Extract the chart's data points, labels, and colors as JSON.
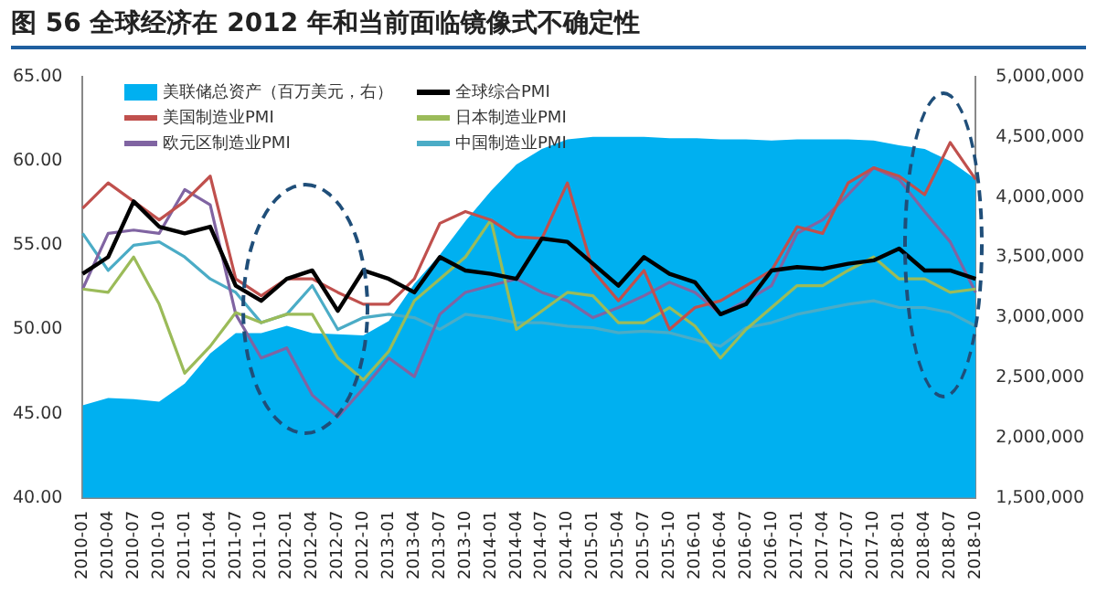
{
  "chart_data": {
    "type": "line",
    "title": "图 56 全球经济在 2012 年和当前面临镜像式不确定性",
    "categories": [
      "2010-01",
      "2010-04",
      "2010-07",
      "2010-10",
      "2011-01",
      "2011-04",
      "2011-07",
      "2011-10",
      "2012-01",
      "2012-04",
      "2012-07",
      "2012-10",
      "2013-01",
      "2013-04",
      "2013-07",
      "2013-10",
      "2014-01",
      "2014-04",
      "2014-07",
      "2014-10",
      "2015-01",
      "2015-04",
      "2015-07",
      "2015-10",
      "2016-01",
      "2016-04",
      "2016-07",
      "2016-10",
      "2017-01",
      "2017-04",
      "2017-07",
      "2017-10",
      "2018-01",
      "2018-04",
      "2018-07",
      "2018-10"
    ],
    "series": [
      {
        "name": "美联储总资产（百万美元，右）",
        "type": "area",
        "axis": "y2",
        "color": "#00b0f0",
        "values": [
          2270000,
          2330000,
          2320000,
          2300000,
          2450000,
          2700000,
          2870000,
          2870000,
          2930000,
          2870000,
          2860000,
          2850000,
          2970000,
          3280000,
          3520000,
          3800000,
          4050000,
          4270000,
          4400000,
          4480000,
          4500000,
          4500000,
          4500000,
          4490000,
          4490000,
          4480000,
          4480000,
          4470000,
          4480000,
          4480000,
          4480000,
          4470000,
          4430000,
          4400000,
          4300000,
          4150000
        ]
      },
      {
        "name": "全球综合PMI",
        "color": "#000000",
        "values": [
          53.3,
          54.3,
          57.6,
          56.1,
          55.7,
          56.1,
          52.6,
          51.7,
          53.0,
          53.5,
          51.1,
          53.5,
          53.0,
          52.2,
          54.3,
          53.5,
          53.3,
          53.0,
          55.4,
          55.2,
          53.9,
          52.6,
          54.3,
          53.3,
          52.8,
          50.9,
          51.5,
          53.5,
          53.7,
          53.6,
          53.9,
          54.1,
          54.8,
          53.5,
          53.5,
          53.0
        ]
      },
      {
        "name": "美国制造业PMI",
        "color": "#c0504d",
        "values": [
          57.2,
          58.7,
          57.6,
          56.5,
          57.6,
          59.1,
          53.0,
          52.0,
          53.0,
          53.0,
          52.2,
          51.5,
          51.5,
          53.0,
          56.3,
          57.0,
          56.5,
          55.5,
          55.4,
          58.7,
          53.5,
          51.7,
          53.5,
          50.0,
          51.3,
          51.7,
          52.6,
          53.5,
          56.1,
          55.7,
          58.7,
          59.6,
          59.1,
          58.0,
          61.1,
          58.9
        ]
      },
      {
        "name": "日本制造业PMI",
        "color": "#9bbb59",
        "values": [
          52.4,
          52.2,
          54.3,
          51.5,
          47.4,
          49.0,
          51.0,
          50.4,
          50.9,
          50.9,
          48.3,
          47.0,
          48.7,
          51.7,
          53.0,
          54.3,
          56.5,
          50.0,
          51.1,
          52.2,
          52.0,
          50.4,
          50.4,
          51.3,
          50.2,
          48.3,
          50.0,
          51.3,
          52.6,
          52.6,
          53.5,
          54.3,
          53.0,
          53.0,
          52.2,
          52.4
        ]
      },
      {
        "name": "欧元区制造业PMI",
        "color": "#8064a2",
        "values": [
          52.4,
          55.7,
          55.9,
          55.7,
          58.3,
          57.4,
          50.9,
          48.3,
          48.9,
          46.1,
          44.8,
          46.5,
          48.3,
          47.2,
          50.9,
          52.2,
          52.6,
          53.0,
          52.2,
          51.7,
          50.7,
          51.3,
          52.0,
          52.8,
          52.2,
          50.9,
          51.7,
          52.6,
          55.7,
          56.5,
          58.0,
          59.6,
          58.9,
          57.0,
          55.2,
          52.2
        ]
      },
      {
        "name": "中国制造业PMI",
        "color": "#4bacc6",
        "values": [
          55.7,
          53.5,
          55.0,
          55.2,
          54.3,
          53.0,
          52.2,
          50.4,
          50.9,
          52.6,
          50.0,
          50.7,
          50.9,
          50.7,
          50.0,
          50.9,
          50.7,
          50.4,
          50.4,
          50.2,
          50.1,
          49.8,
          49.9,
          49.8,
          49.4,
          49.0,
          50.1,
          50.4,
          50.9,
          51.2,
          51.5,
          51.7,
          51.3,
          51.3,
          51.0,
          50.2
        ]
      }
    ],
    "ylim": [
      40,
      65
    ],
    "yticks": [
      {
        "value": 40,
        "label": "40.00"
      },
      {
        "value": 45,
        "label": "45.00"
      },
      {
        "value": 50,
        "label": "50.00"
      },
      {
        "value": 55,
        "label": "55.00"
      },
      {
        "value": 60,
        "label": "60.00"
      },
      {
        "value": 65,
        "label": "65.00"
      }
    ],
    "y2lim": [
      1500000,
      5000000
    ],
    "y2ticks": [
      {
        "value": 1500000,
        "label": "1,500,000"
      },
      {
        "value": 2000000,
        "label": "2,000,000"
      },
      {
        "value": 2500000,
        "label": "2,500,000"
      },
      {
        "value": 3000000,
        "label": "3,000,000"
      },
      {
        "value": 3500000,
        "label": "3,500,000"
      },
      {
        "value": 4000000,
        "label": "4,000,000"
      },
      {
        "value": 4500000,
        "label": "4,500,000"
      },
      {
        "value": 5000000,
        "label": "5,000,000"
      }
    ],
    "legend": "top left",
    "marker": "none",
    "grid": false
  }
}
